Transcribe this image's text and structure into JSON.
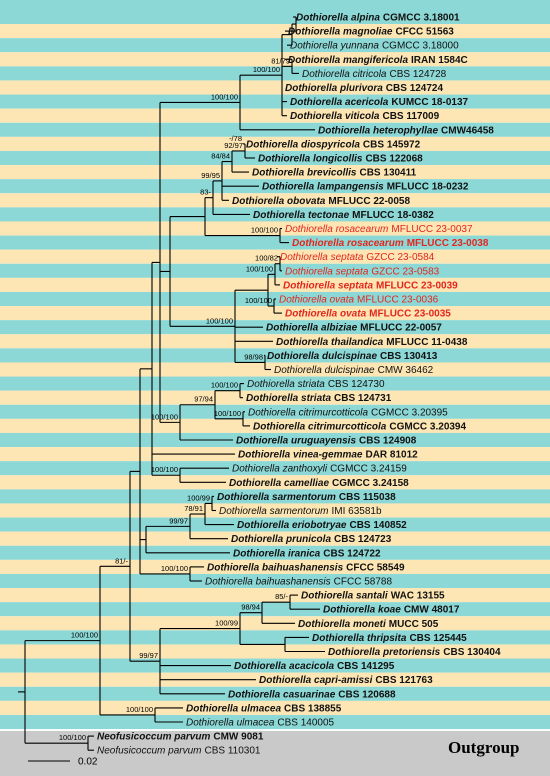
{
  "taxa": [
    {
      "name": "Dothiorella alpina",
      "strain": "CGMCC 3.18001",
      "bold": true,
      "red": false
    },
    {
      "name": "Dothiorella magnoliae",
      "strain": "CFCC 51563",
      "bold": true,
      "red": false
    },
    {
      "name": "Dothiorella yunnana",
      "strain": "CGMCC 3.18000",
      "bold": false,
      "red": false
    },
    {
      "name": "Dothiorella mangifericola",
      "strain": "IRAN 1584C",
      "bold": true,
      "red": false
    },
    {
      "name": "Dothiorella citricola",
      "strain": "CBS 124728",
      "bold": false,
      "red": false
    },
    {
      "name": "Dothiorella plurivora",
      "strain": "CBS 124724",
      "bold": true,
      "red": false
    },
    {
      "name": "Dothiorella acericola",
      "strain": "KUMCC 18-0137",
      "bold": true,
      "red": false
    },
    {
      "name": "Dothiorella viticola",
      "strain": "CBS 117009",
      "bold": true,
      "red": false
    },
    {
      "name": "Dothiorella heterophyllae",
      "strain": "CMW46458",
      "bold": true,
      "red": false
    },
    {
      "name": "Dothiorella diospyricola",
      "strain": "CBS 145972",
      "bold": true,
      "red": false
    },
    {
      "name": "Dothiorella longicollis",
      "strain": "CBS 122068",
      "bold": true,
      "red": false
    },
    {
      "name": "Dothiorella brevicollis",
      "strain": "CBS 130411",
      "bold": true,
      "red": false
    },
    {
      "name": "Dothiorella lampangensis",
      "strain": "MFLUCC 18-0232",
      "bold": true,
      "red": false
    },
    {
      "name": "Dothiorella obovata",
      "strain": "MFLUCC 22-0058",
      "bold": true,
      "red": false
    },
    {
      "name": "Dothiorella tectonae",
      "strain": "MFLUCC 18-0382",
      "bold": true,
      "red": false
    },
    {
      "name": "Dothiorella rosacearum",
      "strain": "MFLUCC 23-0037",
      "bold": false,
      "red": true
    },
    {
      "name": "Dothiorella rosacearum",
      "strain": "MFLUCC 23-0038",
      "bold": true,
      "red": true
    },
    {
      "name": "Dothiorella septata",
      "strain": "GZCC 23-0584",
      "bold": false,
      "red": true
    },
    {
      "name": "Dothiorella septata",
      "strain": "GZCC 23-0583",
      "bold": false,
      "red": true
    },
    {
      "name": "Dothiorella septata",
      "strain": "MFLUCC 23-0039",
      "bold": true,
      "red": true
    },
    {
      "name": "Dothiorella ovata",
      "strain": "MFLUCC 23-0036",
      "bold": false,
      "red": true
    },
    {
      "name": "Dothiorella ovata",
      "strain": "MFLUCC 23-0035",
      "bold": true,
      "red": true
    },
    {
      "name": "Dothiorella albiziae",
      "strain": "MFLUCC 22-0057",
      "bold": true,
      "red": false
    },
    {
      "name": "Dothiorella thailandica",
      "strain": "MFLUCC 11-0438",
      "bold": true,
      "red": false
    },
    {
      "name": "Dothiorella dulcispinae",
      "strain": "CBS 130413",
      "bold": true,
      "red": false
    },
    {
      "name": "Dothiorella dulcispinae",
      "strain": "CMW 36462",
      "bold": false,
      "red": false
    },
    {
      "name": "Dothiorella striata",
      "strain": "CBS 124730",
      "bold": false,
      "red": false
    },
    {
      "name": "Dothiorella striata",
      "strain": "CBS 124731",
      "bold": true,
      "red": false
    },
    {
      "name": "Dothiorella citrimurcotticola",
      "strain": "CGMCC 3.20395",
      "bold": false,
      "red": false
    },
    {
      "name": "Dothiorella citrimurcotticola",
      "strain": "CGMCC 3.20394",
      "bold": true,
      "red": false
    },
    {
      "name": "Dothiorella uruguayensis",
      "strain": "CBS 124908",
      "bold": true,
      "red": false
    },
    {
      "name": "Dothiorella vinea-gemmae",
      "strain": "DAR 81012",
      "bold": true,
      "red": false
    },
    {
      "name": "Dothiorella zanthoxyli",
      "strain": "CGMCC 3.24159",
      "bold": false,
      "red": false
    },
    {
      "name": "Dothiorella camelliae",
      "strain": "CGMCC 3.24158",
      "bold": true,
      "red": false
    },
    {
      "name": "Dothiorella sarmentorum",
      "strain": "CBS 115038",
      "bold": true,
      "red": false
    },
    {
      "name": "Dothiorella sarmentorum",
      "strain": "IMI 63581b",
      "bold": false,
      "red": false
    },
    {
      "name": "Dothiorella eriobotryae",
      "strain": "CBS 140852",
      "bold": true,
      "red": false
    },
    {
      "name": "Dothiorella prunicola",
      "strain": "CBS 124723",
      "bold": true,
      "red": false
    },
    {
      "name": "Dothiorella iranica",
      "strain": "CBS 124722",
      "bold": true,
      "red": false
    },
    {
      "name": "Dothiorella baihuashanensis",
      "strain": "CFCC 58549",
      "bold": true,
      "red": false
    },
    {
      "name": "Dothiorella baihuashanensis",
      "strain": "CFCC 58788",
      "bold": false,
      "red": false
    },
    {
      "name": "Dothiorella santali",
      "strain": "WAC 13155",
      "bold": true,
      "red": false
    },
    {
      "name": "Dothiorella koae",
      "strain": "CMW 48017",
      "bold": true,
      "red": false
    },
    {
      "name": "Dothiorella moneti",
      "strain": "MUCC 505",
      "bold": true,
      "red": false
    },
    {
      "name": "Dothiorella thripsita",
      "strain": "CBS 125445",
      "bold": true,
      "red": false
    },
    {
      "name": "Dothiorella pretoriensis",
      "strain": "CBS 130404",
      "bold": true,
      "red": false
    },
    {
      "name": "Dothiorella acacicola",
      "strain": "CBS 141295",
      "bold": true,
      "red": false
    },
    {
      "name": "Dothiorella capri-amissi",
      "strain": "CBS 121763",
      "bold": true,
      "red": false
    },
    {
      "name": "Dothiorella casuarinae",
      "strain": "CBS 120688",
      "bold": true,
      "red": false
    },
    {
      "name": "Dothiorella ulmacea",
      "strain": "CBS 138855",
      "bold": true,
      "red": false
    },
    {
      "name": "Dothiorella ulmacea",
      "strain": "CBS 140005",
      "bold": false,
      "red": false
    },
    {
      "name": "Neofusicoccum parvum",
      "strain": "CMW 9081",
      "bold": true,
      "red": false
    },
    {
      "name": "Neofusicoccum parvum",
      "strain": "CBS 110301",
      "bold": false,
      "red": false
    }
  ],
  "supports": [
    "81/79",
    "100/100",
    "100/100",
    "-/78",
    "92/97",
    "84/84",
    "99/95",
    "83-",
    "100/100",
    "100/82",
    "100/100",
    "100/100",
    "100/100",
    "98/98",
    "100/100",
    "97/94",
    "100/100",
    "100/100",
    "100/100",
    "100/99",
    "78/91",
    "99/97",
    "100/100",
    "81/-",
    "85/-",
    "98/94",
    "100/99",
    "99/97",
    "100/100",
    "100/100",
    "100/100"
  ],
  "outgroup_label": "Outgroup",
  "scale_bar": "0.02"
}
